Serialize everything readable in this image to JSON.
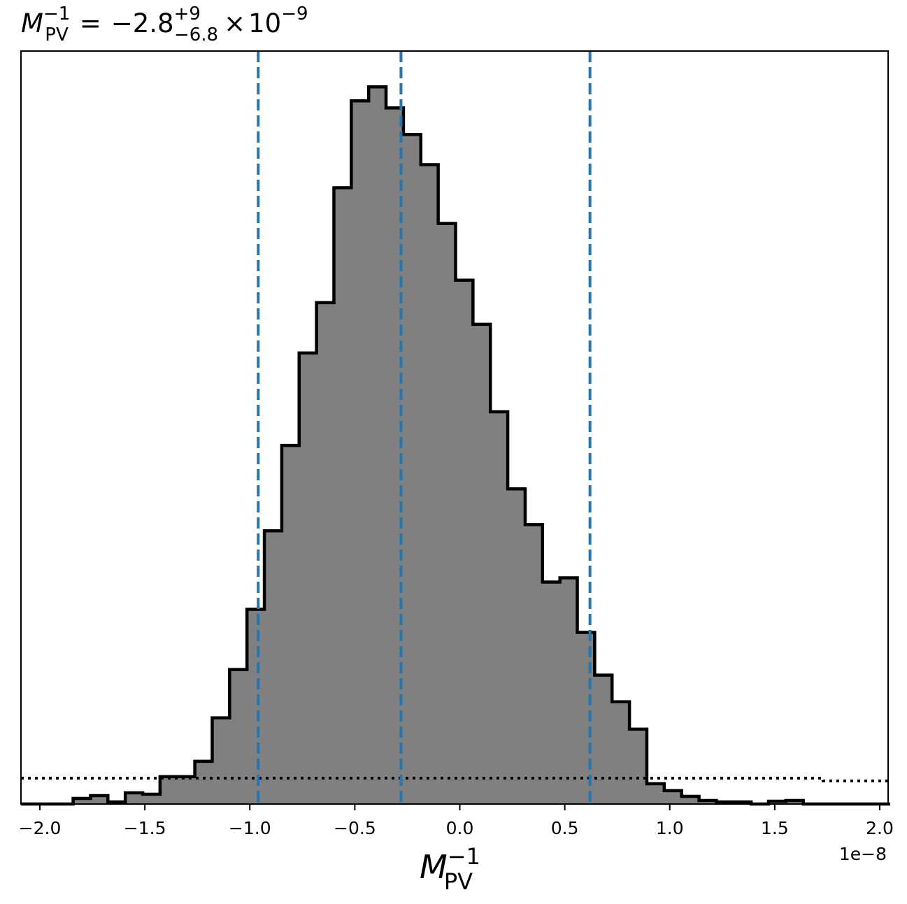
{
  "chart_data": {
    "type": "histogram",
    "title": {
      "symbol": "M",
      "symbol_sub": "PV",
      "symbol_sup": "−1",
      "equals": "=",
      "median": "−2.8",
      "upper": "+9",
      "lower": "−6.8",
      "times": "×",
      "base": "10",
      "exponent": "−9"
    },
    "xlabel": {
      "symbol": "M",
      "sub": "PV",
      "sup": "−1"
    },
    "x_offset_label": "1e−8",
    "x_scale": 1e-08,
    "xlim": [
      -2.09,
      2.04
    ],
    "ylim": [
      0,
      1.05
    ],
    "x_ticks": [
      {
        "value": -2.0,
        "label": "−2.0"
      },
      {
        "value": -1.5,
        "label": "−1.5"
      },
      {
        "value": -1.0,
        "label": "−1.0"
      },
      {
        "value": -0.5,
        "label": "−0.5"
      },
      {
        "value": 0.0,
        "label": "0.0"
      },
      {
        "value": 0.5,
        "label": "0.5"
      },
      {
        "value": 1.0,
        "label": "1.0"
      },
      {
        "value": 1.5,
        "label": "1.5"
      },
      {
        "value": 2.0,
        "label": "2.0"
      }
    ],
    "bin_edges": [
      -2.09,
      -2.0072,
      -1.9244,
      -1.8416,
      -1.7588,
      -1.676,
      -1.5932,
      -1.5104,
      -1.4276,
      -1.3448,
      -1.262,
      -1.1792,
      -1.0964,
      -1.0136,
      -0.9308,
      -0.848,
      -0.7652,
      -0.6824,
      -0.5996,
      -0.5168,
      -0.434,
      -0.3512,
      -0.2684,
      -0.1856,
      -0.1028,
      -0.02,
      0.0628,
      0.1456,
      0.2284,
      0.3112,
      0.394,
      0.4768,
      0.5596,
      0.6424,
      0.7252,
      0.808,
      0.8908,
      0.9736,
      1.0564,
      1.1392,
      1.222,
      1.3048,
      1.3876,
      1.4704,
      1.5532,
      1.636,
      1.7188,
      1.8016,
      1.8844,
      1.9672,
      2.05
    ],
    "counts": [
      0.0,
      0.0,
      0.0,
      0.0078,
      0.0117,
      0.0029,
      0.0156,
      0.0137,
      0.0381,
      0.0381,
      0.0596,
      0.1201,
      0.1875,
      0.2715,
      0.3809,
      0.5,
      0.6289,
      0.6992,
      0.8594,
      0.9805,
      1.0,
      0.9707,
      0.9336,
      0.8916,
      0.8096,
      0.7305,
      0.6689,
      0.5469,
      0.4395,
      0.3896,
      0.3096,
      0.3154,
      0.2393,
      0.1797,
      0.1426,
      0.1045,
      0.0283,
      0.0186,
      0.0107,
      0.0049,
      0.0029,
      0.0029,
      0.0,
      0.0039,
      0.0049,
      0.0,
      0.0,
      0.0,
      0.0,
      0.0
    ],
    "prior_level": 0.0361,
    "prior_step_x": 1.73,
    "prior_level_right": 0.0322,
    "quantiles": [
      -0.96,
      -0.28,
      0.62
    ],
    "colors": {
      "fill": "#808080",
      "edge": "#000000",
      "quantile": "#1f77b4",
      "prior": "#000000"
    }
  }
}
